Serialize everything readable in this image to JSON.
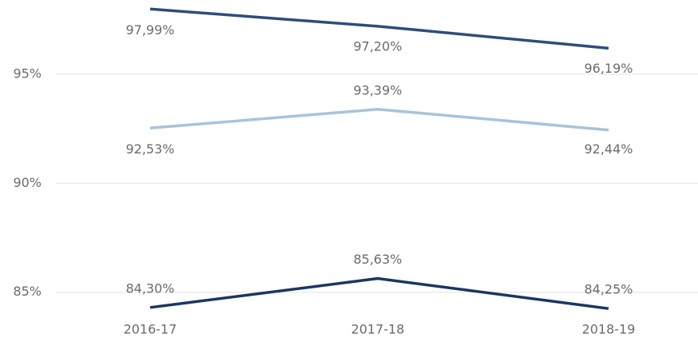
{
  "chart_data": {
    "type": "line",
    "categories": [
      "2016-17",
      "2017-18",
      "2018-19"
    ],
    "series": [
      {
        "color": "#2e4d7b",
        "values": [
          97.99,
          97.2,
          96.19
        ],
        "value_labels": [
          "97,99%",
          "97,20%",
          "96,19%"
        ]
      },
      {
        "color": "#a8c3db",
        "values": [
          92.53,
          93.39,
          92.44
        ],
        "value_labels": [
          "92,53%",
          "93,39%",
          "92,44%"
        ]
      },
      {
        "color": "#1b3662",
        "values": [
          84.3,
          85.63,
          84.25
        ],
        "value_labels": [
          "84,30%",
          "85,63%",
          "84,25%"
        ]
      }
    ],
    "ylim": [
      84,
      98
    ],
    "yticks": [
      {
        "value": 85,
        "label": "85%"
      },
      {
        "value": 90,
        "label": "90%"
      },
      {
        "value": 95,
        "label": "95%"
      }
    ],
    "grid": true
  }
}
